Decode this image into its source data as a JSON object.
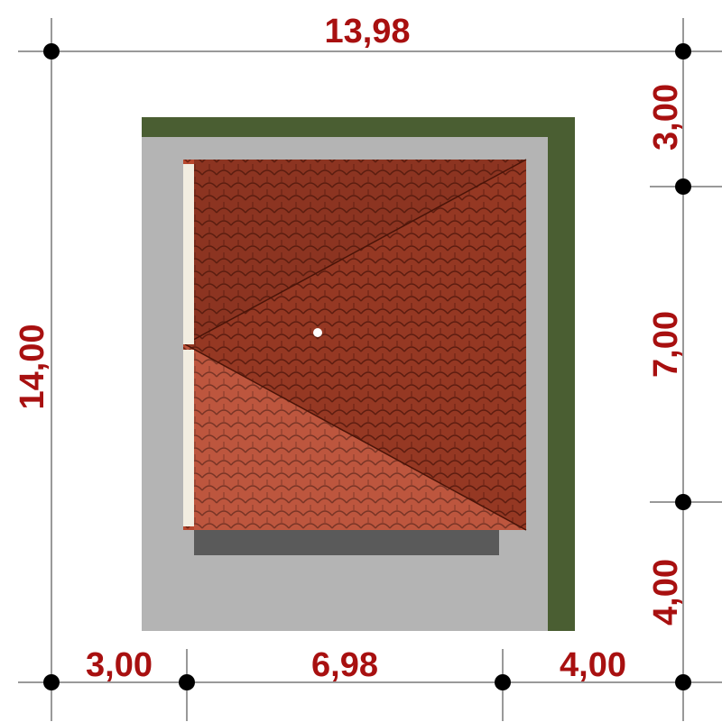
{
  "dimensions": {
    "top": "13,98",
    "left": "14,00",
    "right": [
      "3,00",
      "7,00",
      "4,00"
    ],
    "bottom": [
      "3,00",
      "6,98",
      "4,00"
    ]
  }
}
